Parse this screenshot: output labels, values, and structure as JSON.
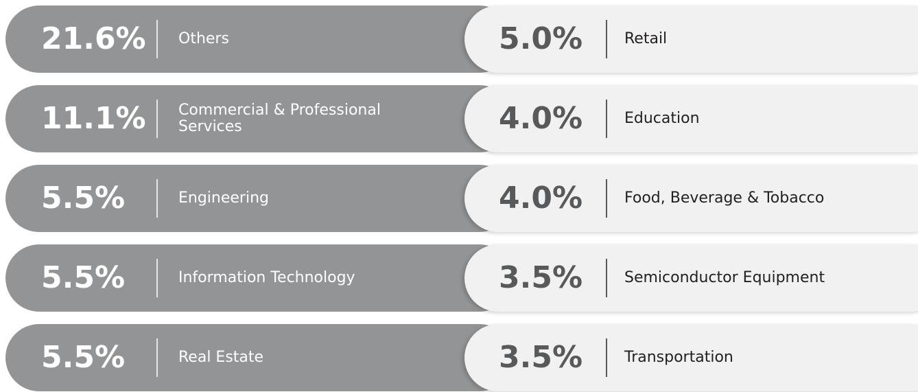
{
  "rows": [
    {
      "left": {
        "percent": "21.6%",
        "label": "Others"
      },
      "right": {
        "percent": "5.0%",
        "label": "Retail"
      }
    },
    {
      "left": {
        "percent": "11.1%",
        "label": "Commercial & Professional Services"
      },
      "right": {
        "percent": "4.0%",
        "label": "Education"
      }
    },
    {
      "left": {
        "percent": "5.5%",
        "label": "Engineering"
      },
      "right": {
        "percent": "4.0%",
        "label": "Food, Beverage & Tobacco"
      }
    },
    {
      "left": {
        "percent": "5.5%",
        "label": "Information Technology"
      },
      "right": {
        "percent": "3.5%",
        "label": "Semiconductor Equipment"
      }
    },
    {
      "left": {
        "percent": "5.5%",
        "label": "Real Estate"
      },
      "right": {
        "percent": "3.5%",
        "label": "Transportation"
      }
    }
  ]
}
